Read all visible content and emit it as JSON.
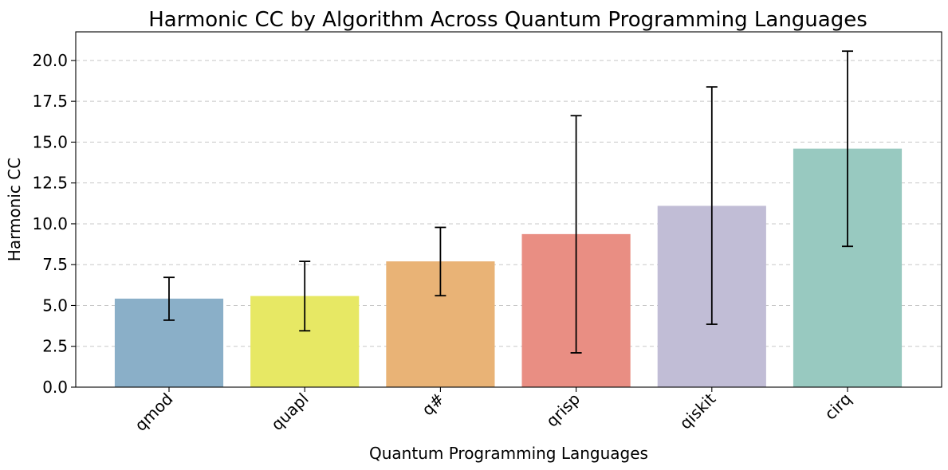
{
  "chart_data": {
    "type": "bar",
    "title": "Harmonic CC by Algorithm Across Quantum Programming Languages",
    "xlabel": "Quantum Programming Languages",
    "ylabel": "Harmonic CC",
    "categories": [
      "qmod",
      "quapl",
      "q#",
      "qrisp",
      "qiskit",
      "cirq"
    ],
    "values": [
      5.42,
      5.58,
      7.7,
      9.37,
      11.1,
      14.6
    ],
    "error_low": [
      4.1,
      3.45,
      5.6,
      2.1,
      3.85,
      8.62
    ],
    "error_high": [
      6.72,
      7.7,
      9.78,
      16.62,
      18.38,
      20.57
    ],
    "colors": [
      "#8aafc8",
      "#e7e864",
      "#e9b376",
      "#e98e83",
      "#c1bdd6",
      "#98c9c0"
    ],
    "ylim": [
      0,
      21.75
    ],
    "yticks": [
      0.0,
      2.5,
      5.0,
      7.5,
      10.0,
      12.5,
      15.0,
      17.5,
      20.0
    ],
    "ytick_labels": [
      "0.0",
      "2.5",
      "5.0",
      "7.5",
      "10.0",
      "12.5",
      "15.0",
      "17.5",
      "20.0"
    ],
    "grid": "y-dashed"
  }
}
